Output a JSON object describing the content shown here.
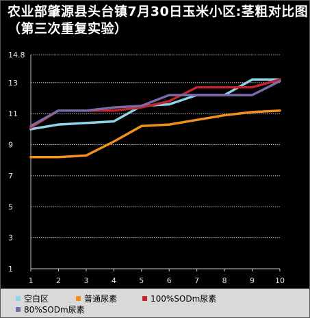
{
  "title": "农业部肇源县头台镇7月30日玉米小区:茎粗对比图（第三次重复实验）",
  "chart_data": {
    "type": "line",
    "title": "农业部肇源县头台镇7月30日玉米小区:茎粗对比图（第三次重复实验）",
    "xlabel": "",
    "ylabel": "",
    "x": [
      1,
      2,
      3,
      4,
      5,
      6,
      7,
      8,
      9,
      10
    ],
    "x_tick_labels": [
      "1",
      "2",
      "3",
      "4",
      "5",
      "6",
      "7",
      "8",
      "9",
      "10"
    ],
    "ylim": [
      1,
      14.8
    ],
    "y_tick_labels": [
      "1",
      "3",
      "5",
      "7",
      "9",
      "11",
      "13",
      "14.8"
    ],
    "grid": true,
    "legend_position": "bottom",
    "series": [
      {
        "name": "空白区",
        "color": "#8fd3e8",
        "values": [
          10.0,
          10.3,
          10.4,
          10.5,
          11.5,
          11.6,
          12.2,
          12.2,
          13.2,
          13.2
        ]
      },
      {
        "name": "普通尿素",
        "color": "#f0901e",
        "values": [
          8.2,
          8.2,
          8.3,
          9.2,
          10.2,
          10.3,
          10.6,
          10.9,
          11.1,
          11.2
        ]
      },
      {
        "name": "100%SODm尿素",
        "color": "#c0242c",
        "values": [
          10.1,
          11.2,
          11.2,
          11.2,
          11.4,
          11.8,
          12.7,
          12.7,
          12.7,
          13.2
        ]
      },
      {
        "name": "80%SODm尿素",
        "color": "#7a6aa8",
        "values": [
          10.2,
          11.2,
          11.2,
          11.4,
          11.5,
          12.2,
          12.2,
          12.2,
          12.2,
          13.1
        ]
      }
    ]
  }
}
